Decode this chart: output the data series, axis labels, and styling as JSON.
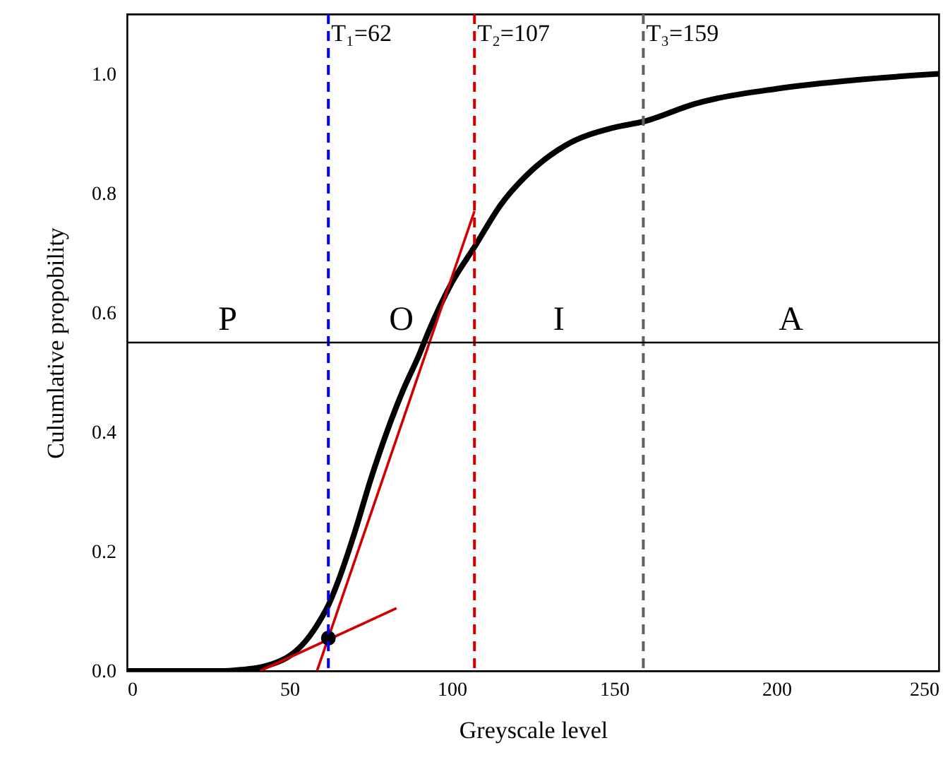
{
  "chart_data": {
    "type": "line",
    "xlabel": "Greyscale level",
    "ylabel": "Culumlative propobility",
    "xlim": [
      0,
      250
    ],
    "ylim": [
      0,
      1.1
    ],
    "xticks": [
      0,
      50,
      100,
      150,
      200,
      250
    ],
    "yticks": [
      {
        "value": 0,
        "label": "0.0"
      },
      {
        "value": 0.2,
        "label": "0.2"
      },
      {
        "value": 0.4,
        "label": "0.4"
      },
      {
        "value": 0.6,
        "label": "0.6"
      },
      {
        "value": 0.8,
        "label": "0.8"
      },
      {
        "value": 1,
        "label": "1.0"
      }
    ],
    "grid": false,
    "line_style": "solid",
    "marker": "none",
    "series": [
      {
        "color": "#000000",
        "x": [
          0,
          30,
          35,
          40,
          45,
          50,
          55,
          60,
          62,
          65,
          70,
          75,
          80,
          85,
          90,
          93,
          100,
          107,
          115,
          125,
          135,
          150,
          159,
          175,
          200,
          225,
          250
        ],
        "values": [
          0,
          0,
          0.002,
          0.005,
          0.012,
          0.025,
          0.05,
          0.09,
          0.11,
          0.15,
          0.23,
          0.32,
          0.4,
          0.47,
          0.53,
          0.57,
          0.65,
          0.71,
          0.78,
          0.84,
          0.88,
          0.91,
          0.92,
          0.95,
          0.975,
          0.99,
          1.0
        ]
      },
      {
        "type": "line",
        "color": "#d00000",
        "x": [
          58.5,
          107
        ],
        "values": [
          0,
          0.77
        ]
      },
      {
        "type": "line",
        "color": "#d00000",
        "x": [
          41,
          83
        ],
        "values": [
          0,
          0.105
        ]
      },
      {
        "type": "scatter",
        "color": "#000000",
        "marker": "circle",
        "x": [
          62
        ],
        "values": [
          0.055
        ]
      }
    ],
    "ref_lines": [
      {
        "axis": "x",
        "value": 62,
        "label": "T₁=62",
        "color": "#0000ff",
        "line_style": "dashed"
      },
      {
        "axis": "x",
        "value": 107,
        "label": "T₂=107",
        "color": "#d00000",
        "line_style": "dashed"
      },
      {
        "axis": "x",
        "value": 159,
        "label": "T₃=159",
        "color": "#606060",
        "line_style": "dashed"
      },
      {
        "axis": "y",
        "value": 0.55,
        "color": "#000000",
        "line_style": "solid"
      }
    ],
    "annotations": [
      "P",
      "O",
      "I",
      "A"
    ]
  }
}
